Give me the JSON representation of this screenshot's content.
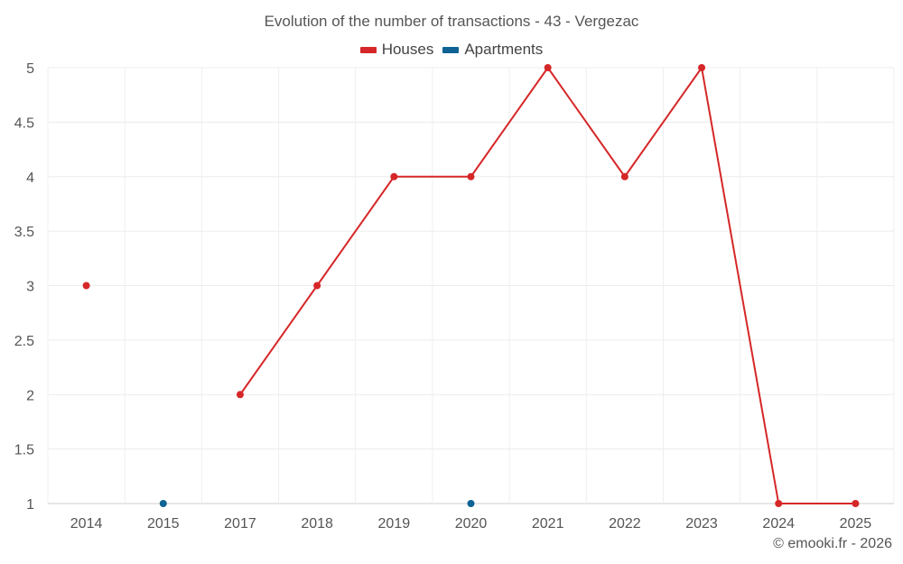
{
  "title": "Evolution of the number of transactions - 43 - Vergezac",
  "credit": "© emooki.fr - 2026",
  "chart_data": {
    "type": "line",
    "title": "Evolution of the number of transactions - 43 - Vergezac",
    "categories": [
      "2014",
      "2015",
      "2017",
      "2018",
      "2019",
      "2020",
      "2021",
      "2022",
      "2023",
      "2024",
      "2025"
    ],
    "series": [
      {
        "name": "Houses",
        "color": "#d62728",
        "values": [
          3,
          null,
          2,
          3,
          4,
          4,
          5,
          4,
          5,
          1,
          1
        ]
      },
      {
        "name": "Apartments",
        "color": "#0e6394",
        "values": [
          null,
          1,
          null,
          null,
          null,
          1,
          null,
          null,
          null,
          null,
          null
        ]
      }
    ],
    "ylim": [
      1,
      5
    ],
    "yticks": [
      "1",
      "1.5",
      "2",
      "2.5",
      "3",
      "3.5",
      "4",
      "4.5",
      "5"
    ],
    "xlabel": "",
    "ylabel": "",
    "grid": true,
    "legend": "top-center"
  }
}
